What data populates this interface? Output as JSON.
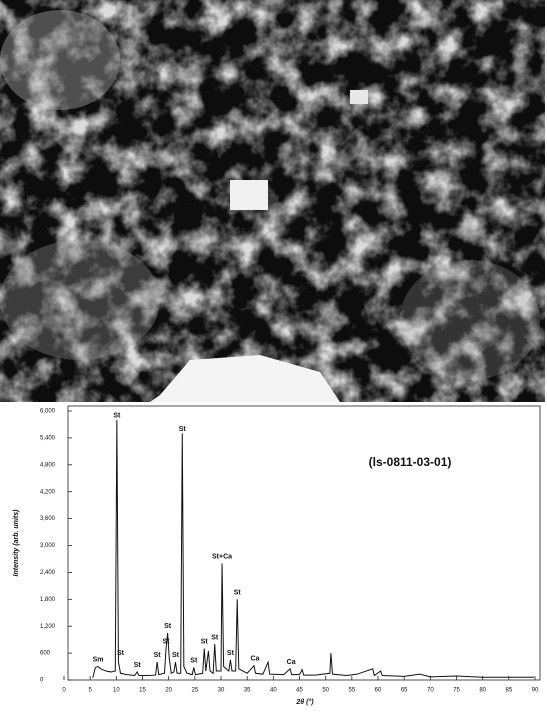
{
  "chart_data": {
    "type": "line",
    "annotation": "(ls-0811-03-01)",
    "xlabel": "2θ (°)",
    "ylabel": "Intensity (arb. units)",
    "xlim": [
      0,
      90
    ],
    "ylim": [
      0,
      6000
    ],
    "xticks": [
      0,
      5,
      10,
      15,
      20,
      25,
      30,
      35,
      40,
      45,
      50,
      55,
      60,
      65,
      70,
      75,
      80,
      85,
      90
    ],
    "yticks": [
      0,
      600,
      {
        "value": 1200,
        "label": "1,200"
      },
      {
        "value": 1800,
        "label": "1,800"
      },
      {
        "value": 2400,
        "label": "2,400"
      },
      {
        "value": 3000,
        "label": "3,000"
      },
      {
        "value": 3600,
        "label": "3,600"
      },
      {
        "value": 4200,
        "label": "4,200"
      },
      {
        "value": 4800,
        "label": "4,800"
      },
      {
        "value": 5400,
        "label": "5,400"
      },
      {
        "value": 6000,
        "label": "6,000"
      }
    ],
    "series": [
      {
        "color": "#111111",
        "x": [
          5.5,
          6,
          6.5,
          7,
          8,
          9,
          9.8,
          10.1,
          10.4,
          10.8,
          12,
          13.5,
          14,
          14.3,
          16,
          17.5,
          17.8,
          18.1,
          19.2,
          19.5,
          19.8,
          20.1,
          20.5,
          21,
          21.3,
          21.6,
          22.3,
          22.6,
          22.9,
          23.5,
          24.5,
          24.8,
          25.1,
          26.5,
          26.8,
          27.1,
          27.6,
          27.9,
          28.5,
          28.8,
          29.1,
          30,
          30.2,
          30.5,
          31.5,
          31.8,
          32.1,
          32.8,
          33.1,
          33.4,
          35,
          36.3,
          36.6,
          38,
          39,
          39.3,
          42,
          43.2,
          43.5,
          45,
          45.5,
          45.8,
          48,
          50.8,
          51,
          51.3,
          54,
          56,
          59,
          59.3,
          60.5,
          60.8,
          65,
          68,
          70,
          75,
          80,
          85,
          89.8
        ],
        "values": [
          50,
          280,
          300,
          250,
          200,
          180,
          200,
          5800,
          400,
          150,
          120,
          100,
          180,
          100,
          100,
          110,
          400,
          120,
          150,
          700,
          1050,
          500,
          150,
          180,
          400,
          150,
          150,
          5500,
          300,
          150,
          120,
          280,
          120,
          150,
          700,
          200,
          650,
          200,
          150,
          800,
          200,
          200,
          2600,
          300,
          200,
          450,
          200,
          200,
          1800,
          250,
          150,
          320,
          150,
          130,
          400,
          130,
          120,
          250,
          120,
          120,
          230,
          110,
          110,
          150,
          600,
          130,
          100,
          130,
          250,
          100,
          200,
          100,
          80,
          130,
          70,
          90,
          60,
          60,
          60
        ]
      }
    ],
    "annotations": [
      {
        "text": "Sm",
        "x": 6.5,
        "y": 450
      },
      {
        "text": "St",
        "x": 10.1,
        "y": 5900
      },
      {
        "text": "St",
        "x": 10.8,
        "y": 600
      },
      {
        "text": "St",
        "x": 14,
        "y": 330
      },
      {
        "text": "St",
        "x": 17.8,
        "y": 550
      },
      {
        "text": "St",
        "x": 19.8,
        "y": 1200
      },
      {
        "text": "St",
        "x": 19.5,
        "y": 850
      },
      {
        "text": "St",
        "x": 21.3,
        "y": 550
      },
      {
        "text": "St",
        "x": 22.6,
        "y": 5600
      },
      {
        "text": "St",
        "x": 24.8,
        "y": 430
      },
      {
        "text": "St",
        "x": 26.8,
        "y": 850
      },
      {
        "text": "St",
        "x": 28.8,
        "y": 950
      },
      {
        "text": "St+Ca",
        "x": 30.2,
        "y": 2750
      },
      {
        "text": "St",
        "x": 31.8,
        "y": 600
      },
      {
        "text": "St",
        "x": 33.1,
        "y": 1950
      },
      {
        "text": "Ca",
        "x": 36.5,
        "y": 480
      },
      {
        "text": "Ca",
        "x": 43.4,
        "y": 400
      }
    ]
  }
}
